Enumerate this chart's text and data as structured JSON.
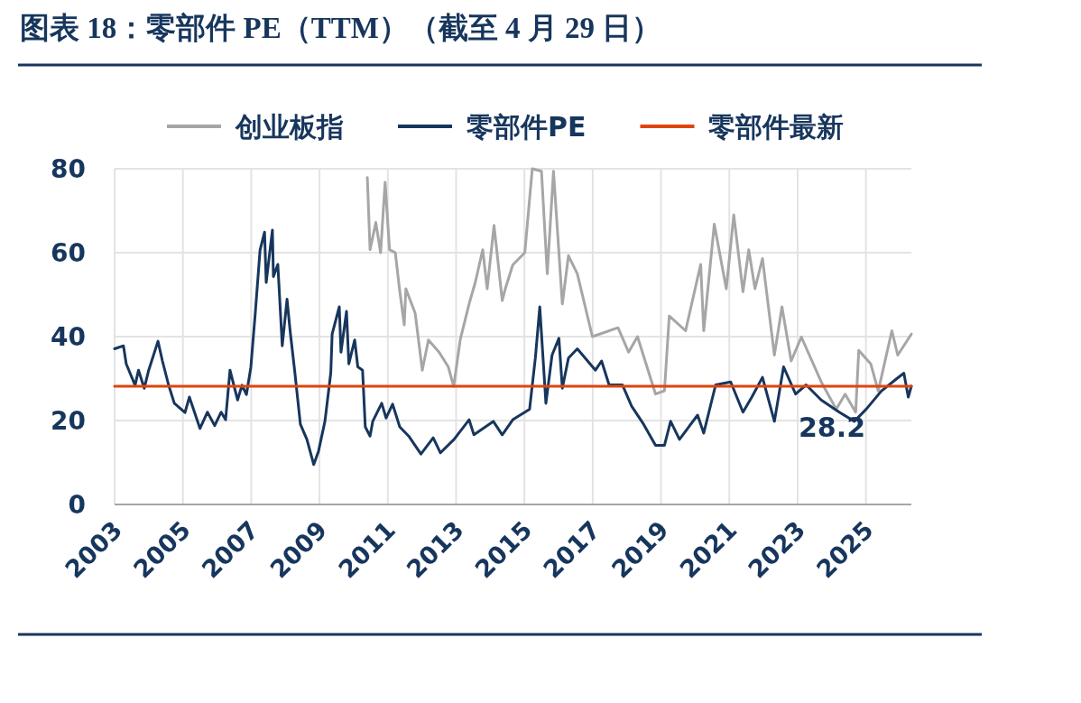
{
  "chart_data": {
    "type": "line",
    "title": "图表 18：零部件 PE（TTM）（截至 4 月 29 日）",
    "xlim": [
      2003,
      2026.33
    ],
    "xticks": [
      2003,
      2005,
      2007,
      2009,
      2011,
      2013,
      2015,
      2017,
      2019,
      2021,
      2023,
      2025
    ],
    "ylim": [
      0,
      80
    ],
    "yticks": [
      0,
      20,
      40,
      60,
      80
    ],
    "grid": true,
    "legend": "top",
    "annotations": [
      {
        "text": "28.2",
        "x": 2026.33,
        "y": 28.2
      }
    ],
    "series": [
      {
        "name": "创业板指",
        "color": "#a6a6a6",
        "x": [
          2010.4,
          2010.48,
          2010.65,
          2010.79,
          2010.92,
          2011.05,
          2011.22,
          2011.34,
          2011.48,
          2011.53,
          2011.8,
          2012.01,
          2012.19,
          2012.5,
          2012.77,
          2012.93,
          2013.12,
          2013.38,
          2013.56,
          2013.78,
          2013.91,
          2014.11,
          2014.35,
          2014.44,
          2014.66,
          2015.01,
          2015.23,
          2015.5,
          2015.67,
          2015.85,
          2016.11,
          2016.29,
          2016.55,
          2016.99,
          2017.74,
          2018.05,
          2018.31,
          2018.84,
          2019.1,
          2019.24,
          2019.72,
          2020.16,
          2020.25,
          2020.56,
          2020.91,
          2021.13,
          2021.4,
          2021.57,
          2021.75,
          2021.97,
          2022.32,
          2022.54,
          2022.81,
          2023.11,
          2023.69,
          2024.13,
          2024.39,
          2024.7,
          2024.79,
          2025.14,
          2025.36,
          2025.76,
          2025.93,
          2026.33
        ],
        "values": [
          77.9,
          60.7,
          67.2,
          60,
          76.8,
          60.7,
          60,
          51.4,
          42.8,
          51.4,
          45.6,
          32,
          39.2,
          36.3,
          32.8,
          28.1,
          39.2,
          47.8,
          52.9,
          60.7,
          51.4,
          66.5,
          48.6,
          51.4,
          57.1,
          60,
          80,
          79.4,
          55,
          79.4,
          47.8,
          59.3,
          55,
          40,
          42.1,
          36.3,
          40,
          26.3,
          27.1,
          44.9,
          41.4,
          57.2,
          41.4,
          66.8,
          51.4,
          69,
          50.7,
          60.7,
          51.4,
          58.6,
          35.6,
          47.1,
          34.2,
          39.9,
          29.2,
          22.7,
          26.3,
          22,
          36.7,
          33.5,
          27,
          41.4,
          35.6,
          40.6
        ]
      },
      {
        "name": "零部件PE",
        "color": "#17365d",
        "x": [
          2003.0,
          2003.26,
          2003.34,
          2003.6,
          2003.7,
          2003.87,
          2004.0,
          2004.27,
          2004.4,
          2004.58,
          2004.75,
          2005.06,
          2005.19,
          2005.5,
          2005.72,
          2005.93,
          2006.12,
          2006.25,
          2006.38,
          2006.6,
          2006.73,
          2006.86,
          2006.99,
          2007.12,
          2007.26,
          2007.39,
          2007.44,
          2007.62,
          2007.65,
          2007.78,
          2007.91,
          2008.05,
          2008.14,
          2008.28,
          2008.44,
          2008.63,
          2008.83,
          2008.97,
          2009.16,
          2009.33,
          2009.37,
          2009.58,
          2009.63,
          2009.79,
          2009.86,
          2010.03,
          2010.12,
          2010.26,
          2010.34,
          2010.48,
          2010.56,
          2010.82,
          2010.95,
          2011.14,
          2011.35,
          2011.61,
          2011.97,
          2012.33,
          2012.54,
          2012.94,
          2013.38,
          2013.52,
          2014.09,
          2014.35,
          2014.66,
          2015.15,
          2015.32,
          2015.45,
          2015.63,
          2015.81,
          2016.01,
          2016.11,
          2016.29,
          2016.55,
          2017.08,
          2017.26,
          2017.48,
          2017.87,
          2018.14,
          2018.49,
          2018.84,
          2019.1,
          2019.28,
          2019.54,
          2020.07,
          2020.25,
          2020.6,
          2021.04,
          2021.4,
          2021.66,
          2021.97,
          2022.32,
          2022.59,
          2022.94,
          2023.25,
          2023.69,
          2024.22,
          2024.66,
          2025.01,
          2025.45,
          2025.89,
          2026.11,
          2026.24,
          2026.33
        ],
        "values": [
          37.1,
          37.8,
          33.5,
          28.4,
          32,
          27.7,
          32,
          38.9,
          34.2,
          28.5,
          24.1,
          21.9,
          25.6,
          18.1,
          22,
          18.8,
          22,
          20.2,
          32,
          24.9,
          28.4,
          26.2,
          32.7,
          45.6,
          60.6,
          64.9,
          52.9,
          65.4,
          54.3,
          57.2,
          37.8,
          48.9,
          41.4,
          31.4,
          19.1,
          15.5,
          9.5,
          12.7,
          19.8,
          31.4,
          40.6,
          47.1,
          36.3,
          46,
          33.5,
          39.2,
          32.8,
          32,
          18.5,
          16.3,
          19.8,
          24.1,
          20.6,
          23.9,
          18.5,
          16.3,
          12,
          15.9,
          12.3,
          15.5,
          20.2,
          16.6,
          19.8,
          16.6,
          20.2,
          22.7,
          34.9,
          47.1,
          24.1,
          35.6,
          39.6,
          27.7,
          34.9,
          37.1,
          32,
          34.2,
          28.5,
          28.5,
          23.4,
          19.1,
          14.1,
          14.1,
          19.8,
          15.5,
          21.3,
          17,
          28.5,
          29.2,
          22,
          25.6,
          30.3,
          19.8,
          32.8,
          26.3,
          28.5,
          24.9,
          22,
          19.8,
          22.7,
          27,
          29.9,
          31.3,
          25.6,
          28.2
        ]
      },
      {
        "name": "零部件最新",
        "color": "#e0440e",
        "x": [
          2003,
          2026.33
        ],
        "values": [
          28.2,
          28.2
        ]
      }
    ]
  }
}
